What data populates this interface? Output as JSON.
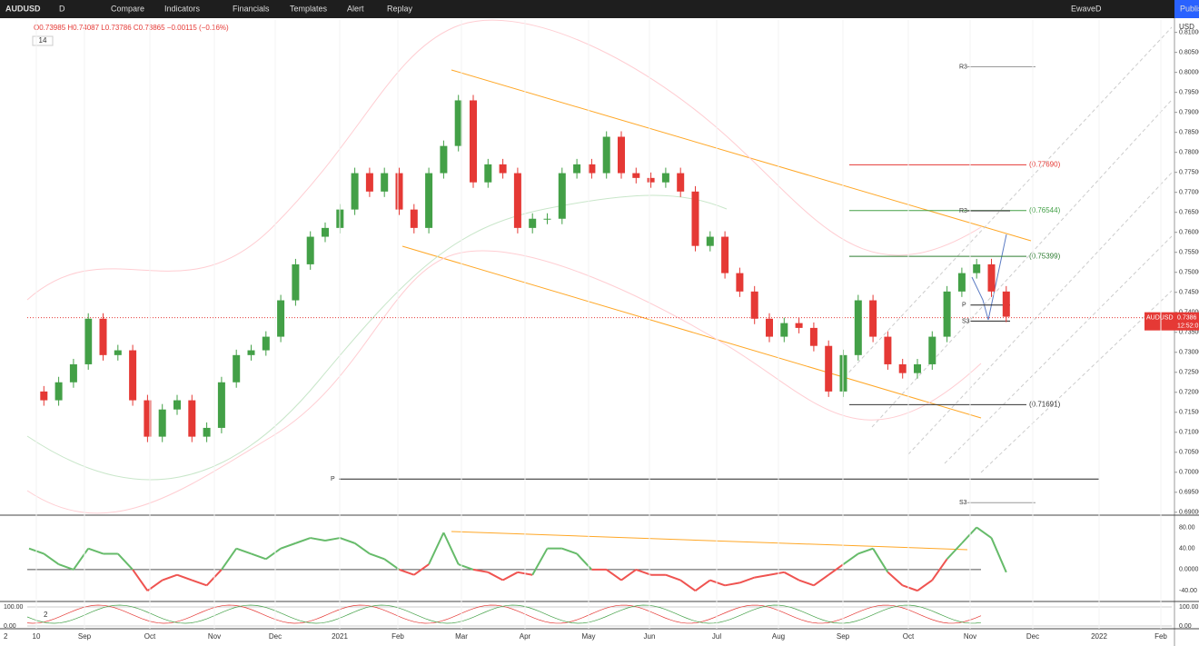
{
  "toolbar": {
    "symbol": "AUDUSD",
    "interval": "D",
    "buttons": [
      "Compare",
      "Indicators",
      "Financials",
      "Templates",
      "Alert",
      "Replay"
    ],
    "layout": "EwaveD",
    "publish": "Publish"
  },
  "legend": {
    "ohlc": "O0.73985 H0.74087 L0.73786 C0.73865 −0.00115 (−0.16%)",
    "input": "14"
  },
  "price_axis": {
    "currency": "USD",
    "ylim": [
      0.6895,
      0.8131
    ],
    "ticks": [
      {
        "value": 0.69,
        "label": "0.69000"
      },
      {
        "value": 0.695,
        "label": "0.69500"
      },
      {
        "value": 0.7,
        "label": "0.70000"
      },
      {
        "value": 0.705,
        "label": "0.70500"
      },
      {
        "value": 0.71,
        "label": "0.71000"
      },
      {
        "value": 0.715,
        "label": "0.71500"
      },
      {
        "value": 0.72,
        "label": "0.72000"
      },
      {
        "value": 0.725,
        "label": "0.72500"
      },
      {
        "value": 0.73,
        "label": "0.73000"
      },
      {
        "value": 0.735,
        "label": "0.73500"
      },
      {
        "value": 0.74,
        "label": "0.74000"
      },
      {
        "value": 0.745,
        "label": "0.74500"
      },
      {
        "value": 0.75,
        "label": "0.75000"
      },
      {
        "value": 0.755,
        "label": "0.75500"
      },
      {
        "value": 0.76,
        "label": "0.76000"
      },
      {
        "value": 0.765,
        "label": "0.76500"
      },
      {
        "value": 0.77,
        "label": "0.77000"
      },
      {
        "value": 0.775,
        "label": "0.77500"
      },
      {
        "value": 0.78,
        "label": "0.78000"
      },
      {
        "value": 0.785,
        "label": "0.78500"
      },
      {
        "value": 0.79,
        "label": "0.79000"
      },
      {
        "value": 0.795,
        "label": "0.79500"
      },
      {
        "value": 0.8,
        "label": "0.80000"
      },
      {
        "value": 0.805,
        "label": "0.80500"
      },
      {
        "value": 0.81,
        "label": "0.81000"
      }
    ]
  },
  "last_close": 0.73865,
  "price_tag": {
    "symbol": "AUDUSD",
    "label": "0.7386",
    "countdown": "12:52:0"
  },
  "closes": [
    0.7202,
    0.718,
    0.7225,
    0.727,
    0.7384,
    0.7293,
    0.7305,
    0.718,
    0.7089,
    0.7157,
    0.718,
    0.7089,
    0.7111,
    0.7225,
    0.7293,
    0.7305,
    0.7339,
    0.743,
    0.752,
    0.7589,
    0.7611,
    0.7657,
    0.7748,
    0.7702,
    0.7748,
    0.7657,
    0.7611,
    0.7748,
    0.7816,
    0.793,
    0.7725,
    0.777,
    0.7748,
    0.7611,
    0.7634,
    0.7634,
    0.7748,
    0.777,
    0.7748,
    0.7839,
    0.7748,
    0.7736,
    0.7725,
    0.7748,
    0.7702,
    0.7566,
    0.7589,
    0.7498,
    0.7452,
    0.7384,
    0.7339,
    0.7373,
    0.7361,
    0.7316,
    0.7202,
    0.7293,
    0.743,
    0.7339,
    0.727,
    0.7248,
    0.727,
    0.7339,
    0.7452,
    0.7498,
    0.752,
    0.7452,
    0.7389
  ],
  "pivots": [
    {
      "name": "R3",
      "value": 0.8014
    },
    {
      "name": "R3",
      "value": 0.7654
    },
    {
      "name": "P",
      "value": 0.7418
    },
    {
      "name": "S3",
      "value": 0.7378
    },
    {
      "name": "P",
      "value": 0.6983
    },
    {
      "name": "S3",
      "value": 0.6924
    }
  ],
  "fib_levels": [
    {
      "value": 0.7769,
      "label": "(0.77690)",
      "color": "#e53935"
    },
    {
      "value": 0.76544,
      "label": "(0.76544)",
      "color": "#43a047"
    },
    {
      "value": 0.75399,
      "label": "(0.75399)",
      "color": "#2e7d32"
    },
    {
      "value": 0.71691,
      "label": "(0.71691)",
      "color": "#333333"
    }
  ],
  "oscillator": {
    "ylim": [
      -57,
      98
    ],
    "ticks": [
      {
        "value": 80,
        "label": "80.00"
      },
      {
        "value": 40,
        "label": "40.00"
      },
      {
        "value": 0,
        "label": "0.0000"
      },
      {
        "value": -40,
        "label": "-40.00"
      }
    ],
    "values": [
      40,
      30,
      10,
      0,
      40,
      30,
      30,
      0,
      -40,
      -20,
      -10,
      -20,
      -30,
      0,
      40,
      30,
      20,
      40,
      50,
      60,
      55,
      60,
      50,
      30,
      20,
      0,
      -10,
      10,
      70,
      10,
      0,
      -5,
      -20,
      -5,
      -10,
      40,
      40,
      30,
      0,
      0,
      -20,
      0,
      -10,
      -10,
      -20,
      -40,
      -20,
      -30,
      -25,
      -15,
      -10,
      -5,
      -20,
      -30,
      -10,
      10,
      30,
      40,
      -5,
      -30,
      -40,
      -20,
      20,
      50,
      80,
      60,
      -5
    ]
  },
  "stoch": {
    "input": "2",
    "ylim": [
      -4.8,
      123.8
    ],
    "ticks": [
      {
        "value": 100,
        "label": "100.00"
      },
      {
        "value": 0,
        "label": "0.00"
      }
    ]
  },
  "time_axis": {
    "start": "2",
    "labels": [
      "10",
      "Sep",
      "Oct",
      "Nov",
      "Dec",
      "2021",
      "Feb",
      "Mar",
      "Apr",
      "May",
      "Jun",
      "Jul",
      "Aug",
      "Sep",
      "Oct",
      "Nov",
      "Dec",
      "2022",
      "Feb"
    ]
  }
}
